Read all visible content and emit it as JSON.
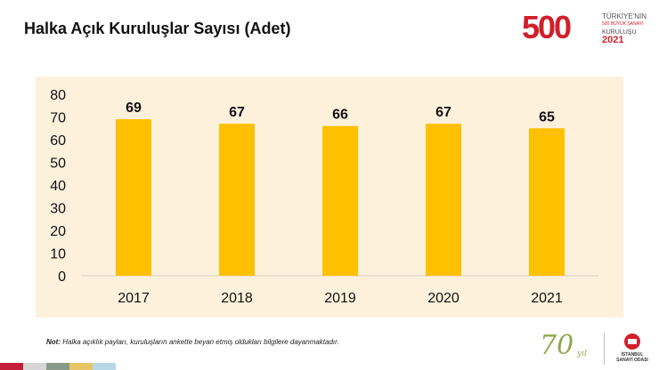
{
  "title": "Halka Açık Kuruluşlar Sayısı (Adet)",
  "logo_500": {
    "number": "500",
    "line1": "TÜRKİYE'NİN",
    "line2": "500 BÜYÜK SANAYİ",
    "line3": "KURULUŞU",
    "year": "2021"
  },
  "note": {
    "label": "Not:",
    "text": " Halka açıklık payları, kuruluşların ankette beyan etmiş oldukları bilgilere dayanmaktadır."
  },
  "logo_70": {
    "number": "70",
    "suffix": "yıl"
  },
  "iso_logo": {
    "line1": "İSTANBUL",
    "line2": "SANAYİ ODASI"
  },
  "colors": {
    "bar": "#ffc000",
    "panel": "#fdf1dc",
    "brand_red": "#d11f2a",
    "stripes": [
      "#c41e3a",
      "#d6d6d6",
      "#8a9a8a",
      "#e8c468",
      "#b8d8e8"
    ]
  },
  "chart_data": {
    "type": "bar",
    "categories": [
      "2017",
      "2018",
      "2019",
      "2020",
      "2021"
    ],
    "values": [
      69,
      67,
      66,
      67,
      65
    ],
    "ylim": [
      0,
      80
    ],
    "yticks": [
      "0",
      "10",
      "20",
      "30",
      "40",
      "50",
      "60",
      "70",
      "80"
    ],
    "grid": false,
    "data_labels": true
  }
}
